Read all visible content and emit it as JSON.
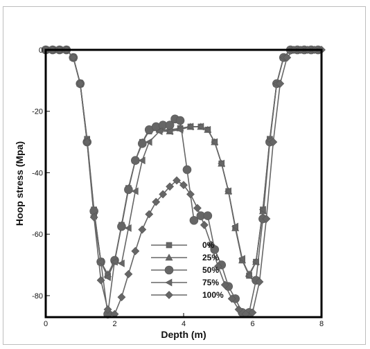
{
  "chart_data": {
    "type": "line",
    "title": "",
    "xlabel": "Depth (m)",
    "ylabel": "Hoop stress (Mpa)",
    "xlim": [
      0,
      8
    ],
    "ylim": [
      -87,
      0
    ],
    "xticks": [
      0,
      2,
      4,
      6,
      8
    ],
    "yticks": [
      0,
      -20,
      -40,
      -60,
      -80
    ],
    "legend_position": "lower-center",
    "series_color": "#666666",
    "series": [
      {
        "name": "0%",
        "marker": "square",
        "x": [
          0,
          0.15,
          0.3,
          0.45,
          0.6,
          0.8,
          1.0,
          1.2,
          1.4,
          1.6,
          1.8,
          2.0,
          2.2,
          2.4,
          2.6,
          2.8,
          3.0,
          3.3,
          3.6,
          3.9,
          4.2,
          4.5,
          4.7,
          4.9,
          5.1,
          5.3,
          5.5,
          5.7,
          5.9,
          6.1,
          6.3,
          6.5,
          6.7,
          6.9,
          7.1,
          7.3,
          7.5,
          7.7,
          7.9
        ],
        "y": [
          0,
          0,
          0,
          0,
          0,
          -2.5,
          -11,
          -29,
          -52,
          -69,
          -73.5,
          -69,
          -57,
          -45,
          -36,
          -30,
          -26.5,
          -26,
          -26,
          -25.5,
          -25,
          -25,
          -26,
          -30,
          -37,
          -46,
          -58,
          -68.5,
          -73.5,
          -69,
          -52,
          -29,
          -11,
          -2.5,
          0,
          0,
          0,
          0,
          0
        ]
      },
      {
        "name": "25%",
        "marker": "triangle",
        "x": [
          0,
          0.2,
          0.4,
          0.6,
          0.8,
          1.0,
          1.2,
          1.4,
          1.6,
          1.8,
          2.0,
          2.2,
          2.4,
          2.6,
          2.8,
          3.0,
          3.3,
          3.6,
          3.9,
          4.2,
          4.5,
          4.7,
          4.9,
          5.1,
          5.3,
          5.5,
          5.7,
          5.9,
          6.1,
          6.3,
          6.5,
          6.7,
          6.9,
          7.1,
          7.3,
          7.5,
          7.7,
          7.9
        ],
        "y": [
          0,
          0,
          0,
          0,
          -2.5,
          -11,
          -29.5,
          -52.5,
          -69,
          -73,
          -68.5,
          -57,
          -45,
          -36,
          -30,
          -26,
          -26,
          -26.5,
          -25.5,
          -25,
          -25,
          -26,
          -30,
          -37,
          -46,
          -58,
          -68.5,
          -73,
          -69,
          -52.5,
          -29.5,
          -11,
          -2.5,
          0,
          0,
          0,
          0,
          0
        ]
      },
      {
        "name": "50%",
        "marker": "circle",
        "x": [
          0,
          0.2,
          0.4,
          0.6,
          0.8,
          1.0,
          1.2,
          1.4,
          1.6,
          1.8,
          2.0,
          2.2,
          2.4,
          2.6,
          2.8,
          3.0,
          3.2,
          3.4,
          3.6,
          3.75,
          3.9,
          4.1,
          4.3,
          4.5,
          4.7,
          4.9,
          5.1,
          5.3,
          5.5,
          5.7,
          5.9,
          6.1,
          6.3,
          6.5,
          6.7,
          6.9,
          7.1,
          7.3,
          7.5,
          7.7,
          7.9
        ],
        "y": [
          0,
          0,
          0,
          0,
          -2.5,
          -11,
          -30,
          -52.5,
          -69,
          -86,
          -68.5,
          -57.5,
          -45.5,
          -36,
          -30.5,
          -26,
          -25,
          -24.5,
          -24.5,
          -22.5,
          -23,
          -39,
          -55.5,
          -54,
          -54,
          -65,
          -70,
          -77,
          -81,
          -85.5,
          -85.5,
          -75,
          -55,
          -30,
          -11,
          -2.5,
          0,
          0,
          0,
          0,
          0
        ]
      },
      {
        "name": "75%",
        "marker": "left-triangle",
        "x": [
          0,
          0.2,
          0.4,
          0.6,
          0.8,
          1.0,
          1.2,
          1.4,
          1.6,
          1.8,
          2.0,
          2.2,
          2.4,
          2.6,
          2.8,
          3.0,
          3.3,
          3.6,
          3.9,
          4.2,
          4.5,
          4.7,
          4.9,
          5.1,
          5.3,
          5.5,
          5.7,
          5.9,
          6.1,
          6.3,
          6.5,
          6.7,
          6.9,
          7.1,
          7.3,
          7.5,
          7.7,
          7.9
        ],
        "y": [
          0,
          0,
          0,
          0,
          -2.5,
          -11,
          -29.5,
          -54,
          -69,
          -74,
          -69,
          -69.5,
          -58,
          -46,
          -36,
          -30,
          -26.5,
          -26.5,
          -26,
          -25,
          -25,
          -26,
          -30,
          -37,
          -46,
          -57.5,
          -68,
          -73.5,
          -69,
          -52,
          -29.5,
          -11,
          -2.5,
          0,
          0,
          0,
          0,
          0
        ]
      },
      {
        "name": "100%",
        "marker": "diamond",
        "x": [
          0,
          0.2,
          0.4,
          0.6,
          0.8,
          1.0,
          1.2,
          1.4,
          1.6,
          1.8,
          2.0,
          2.2,
          2.4,
          2.6,
          2.8,
          3.0,
          3.2,
          3.4,
          3.6,
          3.8,
          4.0,
          4.2,
          4.4,
          4.6,
          4.8,
          5.0,
          5.2,
          5.4,
          5.6,
          5.8,
          6.0,
          6.2,
          6.4,
          6.6,
          6.8,
          7.0,
          7.2,
          7.4,
          7.6,
          7.8,
          8.0
        ],
        "y": [
          0,
          0,
          0,
          0,
          -2.5,
          -11,
          -30,
          -54.5,
          -75,
          -84.5,
          -86,
          -80.5,
          -73,
          -65.5,
          -58.5,
          -53.5,
          -49.5,
          -47,
          -44.5,
          -42.5,
          -44,
          -47,
          -51.5,
          -57,
          -63.5,
          -70.5,
          -76.5,
          -81,
          -84.5,
          -86,
          -85.5,
          -75.5,
          -55,
          -30,
          -11,
          -2.5,
          0,
          0,
          0,
          0,
          0
        ]
      }
    ]
  }
}
